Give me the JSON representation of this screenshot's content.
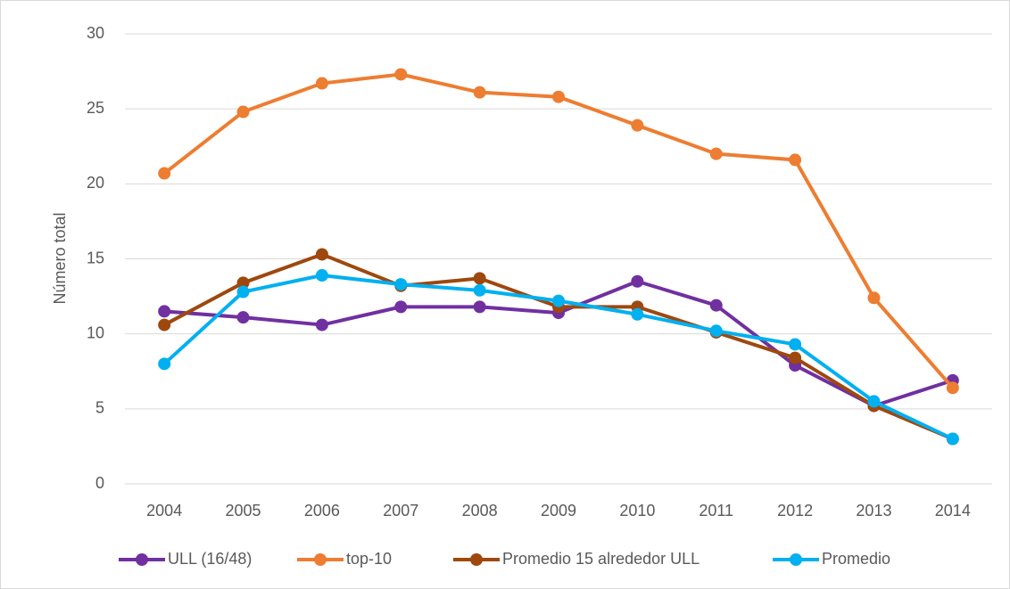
{
  "chart_data": {
    "type": "line",
    "y_label": "Número total",
    "categories": [
      "2004",
      "2005",
      "2006",
      "2007",
      "2008",
      "2009",
      "2010",
      "2011",
      "2012",
      "2013",
      "2014"
    ],
    "series": [
      {
        "name": "ULL (16/48)",
        "color": "#7030a0",
        "values": [
          11.5,
          11.1,
          10.6,
          11.8,
          11.8,
          11.4,
          13.5,
          11.9,
          7.9,
          5.2,
          6.9
        ]
      },
      {
        "name": "top-10",
        "color": "#ed7d31",
        "values": [
          20.7,
          24.8,
          26.7,
          27.3,
          26.1,
          25.8,
          23.9,
          22.0,
          21.6,
          12.4,
          6.4
        ]
      },
      {
        "name": "Promedio 15 alrededor ULL",
        "color": "#9e480e",
        "values": [
          10.6,
          13.4,
          15.3,
          13.2,
          13.7,
          11.8,
          11.8,
          10.1,
          8.4,
          5.2,
          3.0
        ]
      },
      {
        "name": "Promedio",
        "color": "#00b0f0",
        "values": [
          8.0,
          12.8,
          13.9,
          13.3,
          12.9,
          12.2,
          11.3,
          10.2,
          9.3,
          5.5,
          3.0
        ]
      }
    ],
    "ylim": [
      0,
      30
    ],
    "yticks": [
      0,
      5,
      10,
      15,
      20,
      25,
      30
    ],
    "grid": true,
    "legend": "bottom"
  }
}
